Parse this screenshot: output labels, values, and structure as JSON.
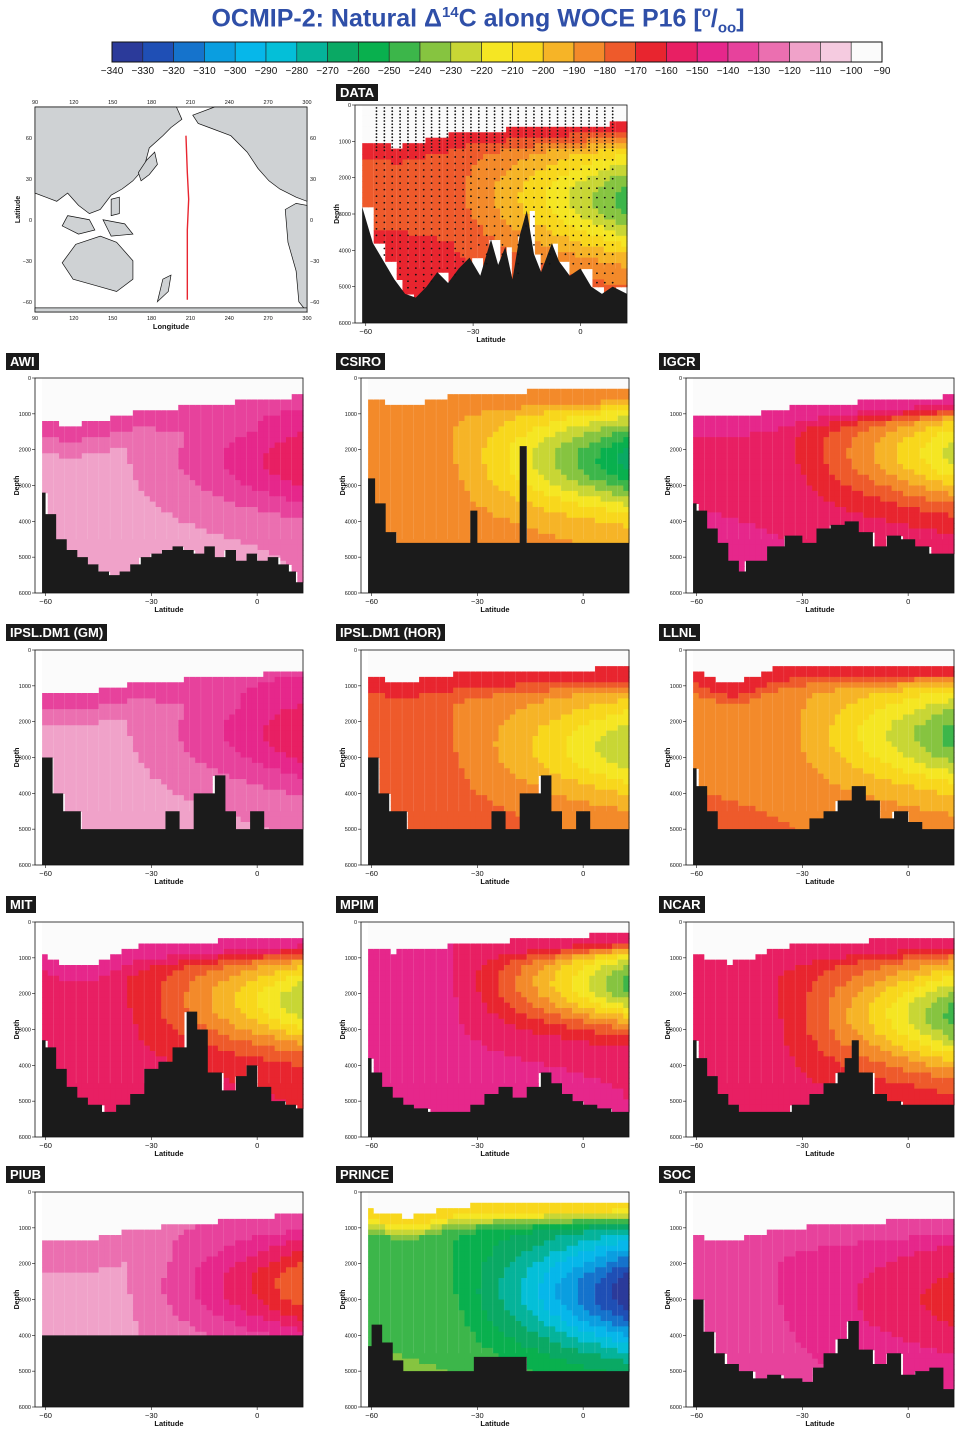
{
  "title": {
    "prefix": "OCMIP-2: Natural Δ",
    "sup": "14",
    "mid": "C along WOCE P16 [",
    "unit_sup": "o",
    "unit_mid": "/",
    "unit_sub": "oo",
    "suffix": "]"
  },
  "colorbar": {
    "ticks": [
      "−340",
      "−330",
      "−320",
      "−310",
      "−300",
      "−290",
      "−280",
      "−270",
      "−260",
      "−250",
      "−240",
      "−230",
      "−220",
      "−210",
      "−200",
      "−190",
      "−180",
      "−170",
      "−160",
      "−150",
      "−140",
      "−130",
      "−120",
      "−110",
      "−100",
      "−90"
    ],
    "colors": [
      "#2b3a9a",
      "#1f4fb5",
      "#1573cc",
      "#0a9ee0",
      "#06b7ea",
      "#04bfd8",
      "#05b39a",
      "#0aa964",
      "#09b04e",
      "#3cb64a",
      "#86c440",
      "#c8d635",
      "#f5e623",
      "#f8d71c",
      "#f6b427",
      "#f38a2a",
      "#ee5a2b",
      "#e8252f",
      "#e81f63",
      "#e6278b",
      "#e7429c",
      "#eb6fb0",
      "#f0a2c9",
      "#f5cbe0",
      "#fbfbfb"
    ]
  },
  "map": {
    "ylabel": "Latitude",
    "xlabel": "Longitude",
    "lon_ticks": [
      "90",
      "120",
      "150",
      "180",
      "210",
      "240",
      "270",
      "300"
    ],
    "lat_ticks": [
      "60",
      "30",
      "0",
      "−30",
      "−60"
    ],
    "track_color": "#e8252f",
    "land_color": "#cfd2d4"
  },
  "section_axes": {
    "ylabel": "Depth",
    "xlabel": "Latitude",
    "depth_ticks": [
      "0",
      "1000",
      "2000",
      "3000",
      "4000",
      "5000",
      "6000"
    ],
    "lat_ticks": [
      "−60",
      "−30",
      "0"
    ]
  },
  "panels": [
    {
      "label": "DATA",
      "key": "data"
    },
    {
      "label": "AWI",
      "key": "awi"
    },
    {
      "label": "CSIRO",
      "key": "csiro"
    },
    {
      "label": "IGCR",
      "key": "igcr"
    },
    {
      "label": "IPSL.DM1 (GM)",
      "key": "ipslgm"
    },
    {
      "label": "IPSL.DM1 (HOR)",
      "key": "ipslhor"
    },
    {
      "label": "LLNL",
      "key": "llnl"
    },
    {
      "label": "MIT",
      "key": "mit"
    },
    {
      "label": "MPIM",
      "key": "mpim"
    },
    {
      "label": "NCAR",
      "key": "ncar"
    },
    {
      "label": "PIUB",
      "key": "piub"
    },
    {
      "label": "PRINCE",
      "key": "prince"
    },
    {
      "label": "SOC",
      "key": "soc"
    }
  ],
  "chart_data": {
    "type": "heatmap",
    "title": "OCMIP-2: Natural Δ14C along WOCE P16 [o/oo]",
    "colorbar_range": [
      -340,
      -90
    ],
    "colorbar_step": 10,
    "xlabel": "Latitude",
    "ylabel": "Depth",
    "xlim": [
      -63,
      13
    ],
    "ylim": [
      6000,
      0
    ],
    "section_min_delta14c_approx": {
      "DATA": -245,
      "AWI": -160,
      "CSIRO": -265,
      "IGCR": -225,
      "IPSL.DM1 (GM)": -160,
      "IPSL.DM1 (HOR)": -230,
      "LLNL": -245,
      "MIT": -230,
      "MPIM": -245,
      "NCAR": -245,
      "PIUB": -180,
      "PRINCE": -340,
      "SOC": -165
    }
  }
}
